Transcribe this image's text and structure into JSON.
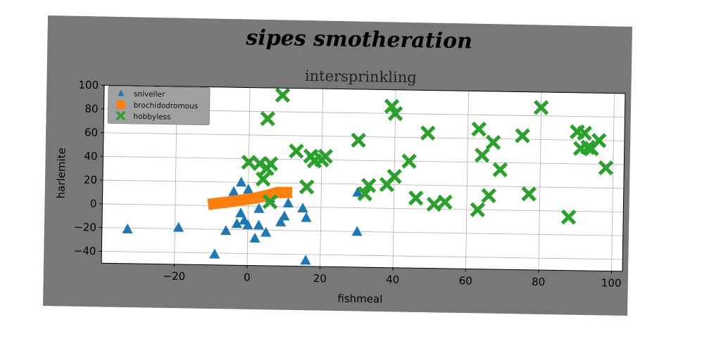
{
  "chart_data": {
    "type": "scatter",
    "suptitle": "sipes smotheration",
    "title": "intersprinkling",
    "xlabel": "fishmeal",
    "ylabel": "harlemite",
    "xlim": [
      -40,
      103
    ],
    "ylim": [
      -50,
      100
    ],
    "xticks": [
      -20,
      0,
      20,
      40,
      60,
      80,
      100
    ],
    "yticks": [
      -40,
      -20,
      0,
      20,
      40,
      60,
      80,
      100
    ],
    "xtick_labels": [
      "−20",
      "0",
      "20",
      "40",
      "60",
      "80",
      "100"
    ],
    "ytick_labels": [
      "−40",
      "−20",
      "0",
      "20",
      "40",
      "60",
      "80",
      "100"
    ],
    "grid": true,
    "legend_position": "upper-left",
    "series": [
      {
        "name": "sniveller",
        "marker": "triangle",
        "color": "#1f77b4",
        "points": [
          [
            -33,
            -21
          ],
          [
            -19,
            -19
          ],
          [
            -9,
            -41
          ],
          [
            -6,
            -21
          ],
          [
            -4,
            12
          ],
          [
            -3,
            -15
          ],
          [
            -2,
            -6
          ],
          [
            -2,
            20
          ],
          [
            -1,
            -12
          ],
          [
            0,
            -16
          ],
          [
            0,
            14
          ],
          [
            1,
            6
          ],
          [
            2,
            -27
          ],
          [
            3,
            -2
          ],
          [
            3,
            -16
          ],
          [
            5,
            -22
          ],
          [
            6,
            7
          ],
          [
            9,
            -13
          ],
          [
            10,
            -8
          ],
          [
            11,
            3
          ],
          [
            15,
            -1
          ],
          [
            16,
            -9
          ],
          [
            16,
            -45
          ],
          [
            30,
            13
          ],
          [
            30,
            -20
          ]
        ]
      },
      {
        "name": "brochidodromous",
        "marker": "line",
        "color": "#ff7f0e",
        "points": [
          [
            -11,
            1
          ],
          [
            -6,
            3
          ],
          [
            -2,
            5
          ],
          [
            2,
            7
          ],
          [
            6,
            10
          ],
          [
            8,
            12
          ],
          [
            12,
            12
          ]
        ]
      },
      {
        "name": "hobbyless",
        "marker": "x",
        "color": "#2ca02c",
        "points": [
          [
            0,
            37
          ],
          [
            3,
            36
          ],
          [
            4,
            23
          ],
          [
            5,
            74
          ],
          [
            5,
            32
          ],
          [
            6,
            4
          ],
          [
            6,
            36
          ],
          [
            9,
            94
          ],
          [
            13,
            47
          ],
          [
            16,
            17
          ],
          [
            17,
            43
          ],
          [
            18,
            39
          ],
          [
            20,
            40
          ],
          [
            21,
            43
          ],
          [
            30,
            57
          ],
          [
            32,
            12
          ],
          [
            33,
            19
          ],
          [
            38,
            20
          ],
          [
            40,
            27
          ],
          [
            39,
            86
          ],
          [
            40,
            80
          ],
          [
            44,
            40
          ],
          [
            46,
            9
          ],
          [
            49,
            64
          ],
          [
            51,
            4
          ],
          [
            54,
            6
          ],
          [
            63,
            68
          ],
          [
            63,
            0
          ],
          [
            64,
            46
          ],
          [
            66,
            12
          ],
          [
            67,
            57
          ],
          [
            69,
            34
          ],
          [
            75,
            63
          ],
          [
            77,
            14
          ],
          [
            80,
            87
          ],
          [
            88,
            -5
          ],
          [
            90,
            67
          ],
          [
            91,
            53
          ],
          [
            92,
            66
          ],
          [
            93,
            54
          ],
          [
            94,
            53
          ],
          [
            96,
            60
          ],
          [
            98,
            37
          ]
        ]
      }
    ]
  }
}
